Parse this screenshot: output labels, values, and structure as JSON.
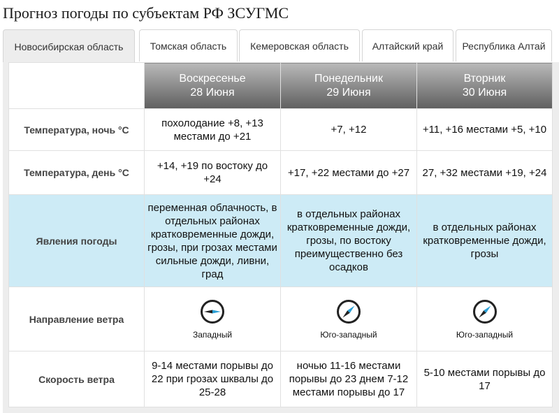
{
  "page": {
    "title": "Прогноз погоды по субъектам РФ ЗСУГМС"
  },
  "tabs": [
    {
      "label": "Новосибирская область",
      "active": true
    },
    {
      "label": "Томская область",
      "active": false
    },
    {
      "label": "Кемеровская область",
      "active": false
    },
    {
      "label": "Алтайский край",
      "active": false
    },
    {
      "label": "Республика Алтай",
      "active": false
    }
  ],
  "days": [
    {
      "weekday": "Воскресенье",
      "date": "28 Июня"
    },
    {
      "weekday": "Понедельник",
      "date": "29 Июня"
    },
    {
      "weekday": "Вторник",
      "date": "30 Июня"
    }
  ],
  "rows": {
    "temp_night": {
      "label": "Температура, ночь °C",
      "values": [
        "похолодание +8, +13 местами до +21",
        "+7, +12",
        "+11, +16 местами +5, +10"
      ]
    },
    "temp_day": {
      "label": "Температура, день °C",
      "values": [
        "+14, +19 по востоку до +24",
        "+17, +22 местами до +27",
        "27, +32 местами +19, +24"
      ]
    },
    "phenomena": {
      "label": "Явления погоды",
      "values": [
        "переменная облачность, в отдельных районах кратковременные дожди, грозы, при грозах местами сильные дожди, ливни, град",
        "в отдельных районах кратковременные дожди, грозы, по востоку преимущественно без осадков",
        "в отдельных районах кратковременные дожди, грозы"
      ]
    },
    "wind_dir": {
      "label": "Направление ветра",
      "values": [
        "Западный",
        "Юго-западный",
        "Юго-западный"
      ],
      "icons": [
        "wind-compass-west-icon",
        "wind-compass-southwest-icon",
        "wind-compass-southwest-icon"
      ]
    },
    "wind_speed": {
      "label": "Скорость ветра",
      "values": [
        "9-14 местами порывы до 22 при грозах шквалы до 25-28",
        "ночью 11-16 местами порывы до 23 днем 7-12 местами порывы до 17",
        "5-10 местами порывы до 17"
      ]
    }
  },
  "colors": {
    "header_gradient_top": "#b9b9b9",
    "header_gradient_bottom": "#5f5f5f",
    "highlight_row": "#cdebf6",
    "compass_dark": "#222222",
    "compass_accent": "#2a9fd6"
  }
}
